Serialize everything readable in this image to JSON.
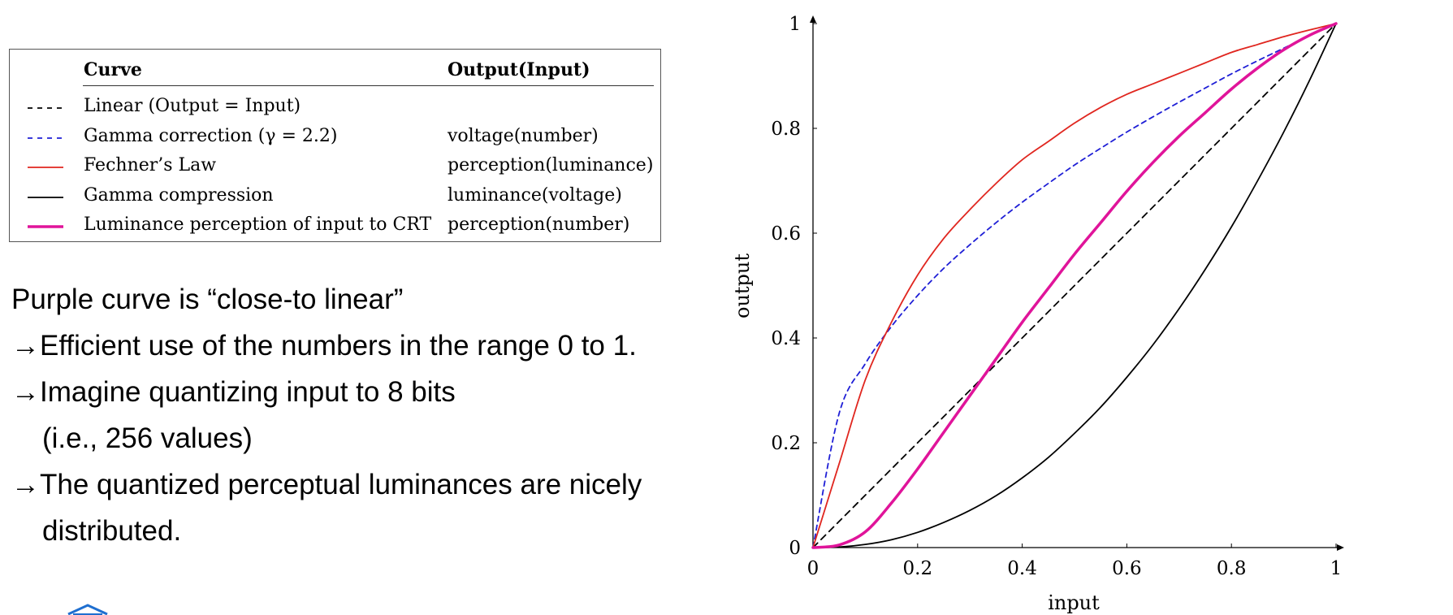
{
  "legend": {
    "header_curve": "Curve",
    "header_io": "Output(Input)",
    "rows": [
      {
        "label": "Linear (Output = Input)",
        "io": "",
        "color": "#000000",
        "style": "dashed",
        "width": 1.8
      },
      {
        "label": "Gamma correction (γ = 2.2)",
        "io": "voltage(number)",
        "color": "#1f1fd6",
        "style": "dashed",
        "width": 1.8
      },
      {
        "label": "Fechner’s Law",
        "io": "perception(luminance)",
        "color": "#e0261f",
        "style": "solid",
        "width": 1.8
      },
      {
        "label": "Gamma compression",
        "io": "luminance(voltage)",
        "color": "#000000",
        "style": "solid",
        "width": 1.8
      },
      {
        "label": "Luminance perception of input to CRT",
        "io": "perception(number)",
        "color": "#e0149a",
        "style": "solid",
        "width": 3.5
      }
    ]
  },
  "notes": {
    "line1": "Purple curve is “close-to linear”",
    "line2": "→Efficient use of the numbers in the range 0 to 1.",
    "line3": "→Imagine quantizing input to 8 bits",
    "line4": "(i.e., 256 values)",
    "line5": "→The quantized perceptual luminances are nicely",
    "line6": "distributed."
  },
  "chart_data": {
    "type": "line",
    "xlabel": "input",
    "ylabel": "output",
    "xlim": [
      0,
      1
    ],
    "ylim": [
      0,
      1
    ],
    "xticks": [
      0,
      0.2,
      0.4,
      0.6,
      0.8,
      1
    ],
    "yticks": [
      0,
      0.2,
      0.4,
      0.6,
      0.8,
      1
    ],
    "xtick_labels": [
      "0",
      "0.2",
      "0.4",
      "0.6",
      "0.8",
      "1"
    ],
    "ytick_labels": [
      "0",
      "0.2",
      "0.4",
      "0.6",
      "0.8",
      "1"
    ],
    "grid": false,
    "x": [
      0,
      0.05,
      0.1,
      0.15,
      0.2,
      0.25,
      0.3,
      0.35,
      0.4,
      0.45,
      0.5,
      0.55,
      0.6,
      0.65,
      0.7,
      0.75,
      0.8,
      0.85,
      0.9,
      0.95,
      1
    ],
    "series": [
      {
        "name": "Linear (Output = Input)",
        "color": "#000000",
        "dash": "8,6",
        "width": 1.8,
        "values": [
          0,
          0.05,
          0.1,
          0.15,
          0.2,
          0.25,
          0.3,
          0.35,
          0.4,
          0.45,
          0.5,
          0.55,
          0.6,
          0.65,
          0.7,
          0.75,
          0.8,
          0.85,
          0.9,
          0.95,
          1
        ]
      },
      {
        "name": "Gamma correction (γ = 2.2)",
        "color": "#1f1fd6",
        "dash": "6,5",
        "width": 1.8,
        "values": [
          0,
          0.256,
          0.351,
          0.422,
          0.481,
          0.533,
          0.578,
          0.62,
          0.659,
          0.695,
          0.73,
          0.762,
          0.793,
          0.822,
          0.85,
          0.877,
          0.904,
          0.929,
          0.953,
          0.977,
          1
        ]
      },
      {
        "name": "Fechner’s Law",
        "color": "#e0261f",
        "dash": "",
        "width": 1.8,
        "values": [
          0,
          0.16,
          0.32,
          0.43,
          0.52,
          0.59,
          0.645,
          0.695,
          0.74,
          0.775,
          0.81,
          0.84,
          0.865,
          0.885,
          0.905,
          0.925,
          0.945,
          0.96,
          0.975,
          0.988,
          1
        ]
      },
      {
        "name": "Gamma compression",
        "color": "#000000",
        "dash": "",
        "width": 1.8,
        "values": [
          0,
          0.001,
          0.006,
          0.015,
          0.029,
          0.048,
          0.071,
          0.099,
          0.133,
          0.172,
          0.218,
          0.268,
          0.325,
          0.387,
          0.456,
          0.531,
          0.612,
          0.7,
          0.793,
          0.893,
          1
        ]
      },
      {
        "name": "Luminance perception of input to CRT",
        "color": "#e0149a",
        "dash": "",
        "width": 3.5,
        "values": [
          0,
          0.005,
          0.03,
          0.085,
          0.15,
          0.22,
          0.29,
          0.36,
          0.43,
          0.495,
          0.56,
          0.62,
          0.68,
          0.735,
          0.785,
          0.83,
          0.875,
          0.915,
          0.95,
          0.978,
          1
        ]
      }
    ]
  }
}
